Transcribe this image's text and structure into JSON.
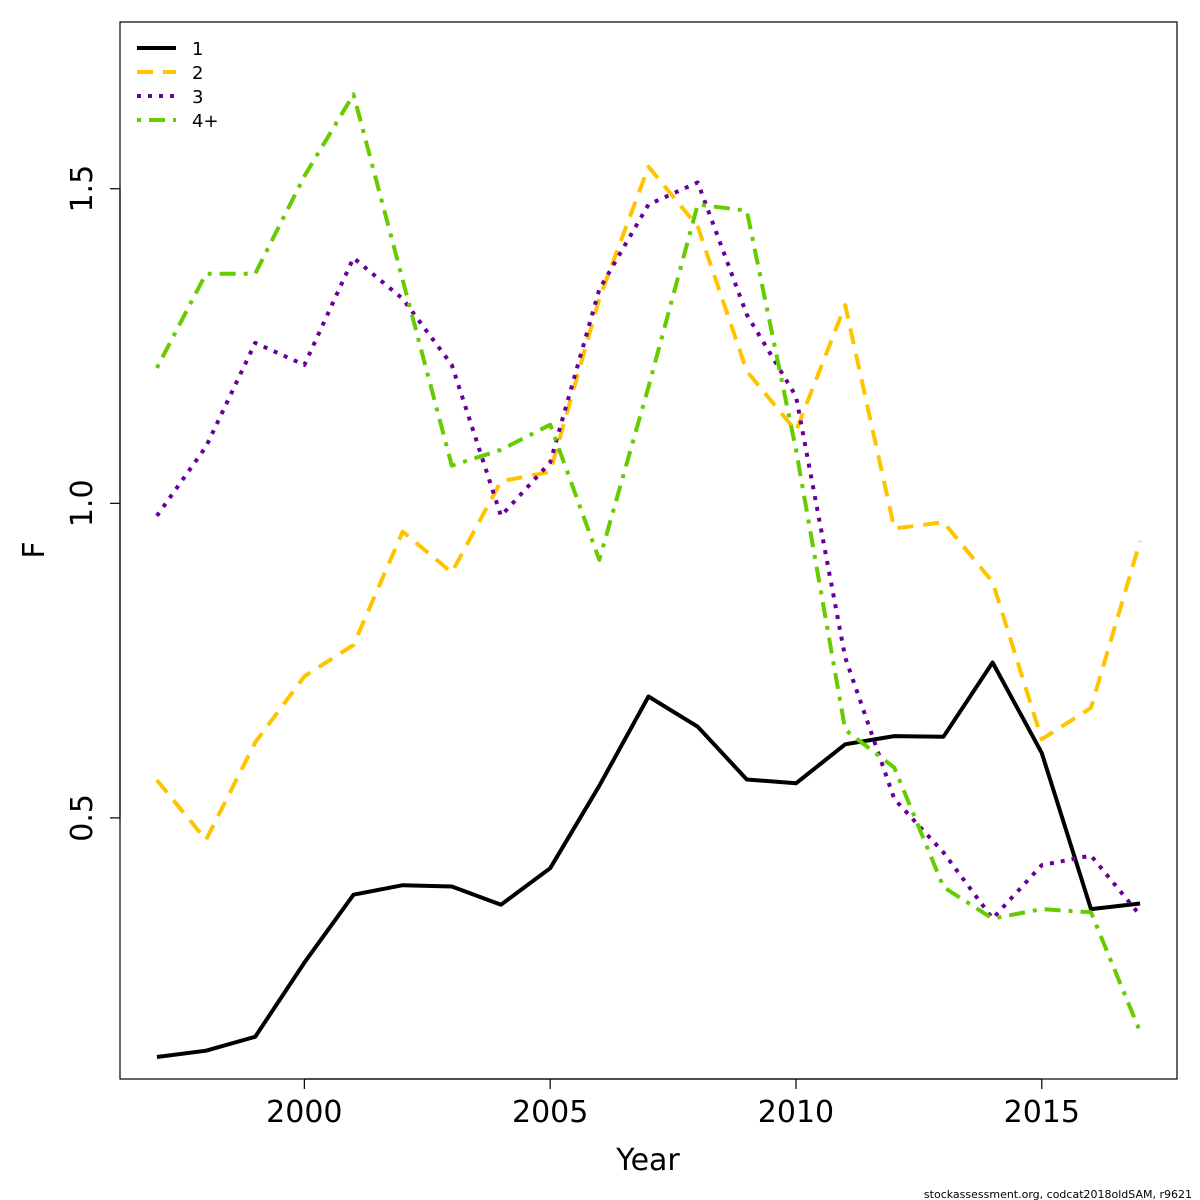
{
  "chart_data": {
    "type": "line",
    "title": "",
    "xlabel": "Year",
    "ylabel": "F",
    "xlim": [
      1996.25,
      2017.75
    ],
    "ylim": [
      0.085,
      1.765
    ],
    "x_ticks": [
      2000,
      2005,
      2010,
      2015
    ],
    "y_ticks": [
      0.5,
      1.0,
      1.5
    ],
    "y_tick_labels": [
      "0.5",
      "1.0",
      "1.5"
    ],
    "grid": false,
    "legend_position": "top-left",
    "x": [
      1997,
      1998,
      1999,
      2000,
      2001,
      2002,
      2003,
      2004,
      2005,
      2006,
      2007,
      2008,
      2009,
      2010,
      2011,
      2012,
      2013,
      2014,
      2015,
      2016,
      2017
    ],
    "series": [
      {
        "name": "1",
        "color": "#000000",
        "dash": "solid",
        "values": [
          0.12,
          0.13,
          0.152,
          0.27,
          0.378,
          0.393,
          0.391,
          0.362,
          0.42,
          0.551,
          0.693,
          0.645,
          0.561,
          0.555,
          0.617,
          0.63,
          0.629,
          0.747,
          0.603,
          0.355,
          0.364
        ]
      },
      {
        "name": "2",
        "color": "#FFC400",
        "dash": "dashed",
        "values": [
          0.56,
          0.465,
          0.62,
          0.725,
          0.775,
          0.955,
          0.89,
          1.035,
          1.05,
          1.325,
          1.535,
          1.44,
          1.21,
          1.115,
          1.315,
          0.96,
          0.97,
          0.875,
          0.625,
          0.675,
          0.94
        ]
      },
      {
        "name": "3",
        "color": "#660099",
        "dash": "dotted",
        "values": [
          0.98,
          1.09,
          1.255,
          1.22,
          1.39,
          1.325,
          1.22,
          0.98,
          1.065,
          1.34,
          1.475,
          1.51,
          1.3,
          1.17,
          0.755,
          0.53,
          0.445,
          0.34,
          0.425,
          0.44,
          0.345
        ]
      },
      {
        "name": "4+",
        "color": "#66CC00",
        "dash": "dotdash",
        "values": [
          1.215,
          1.365,
          1.365,
          1.52,
          1.65,
          1.355,
          1.06,
          1.085,
          1.125,
          0.91,
          1.185,
          1.475,
          1.465,
          1.085,
          0.64,
          0.58,
          0.39,
          0.34,
          0.355,
          0.35,
          0.16
        ]
      }
    ]
  },
  "footer": "stockassessment.org, codcat2018oldSAM, r9621"
}
